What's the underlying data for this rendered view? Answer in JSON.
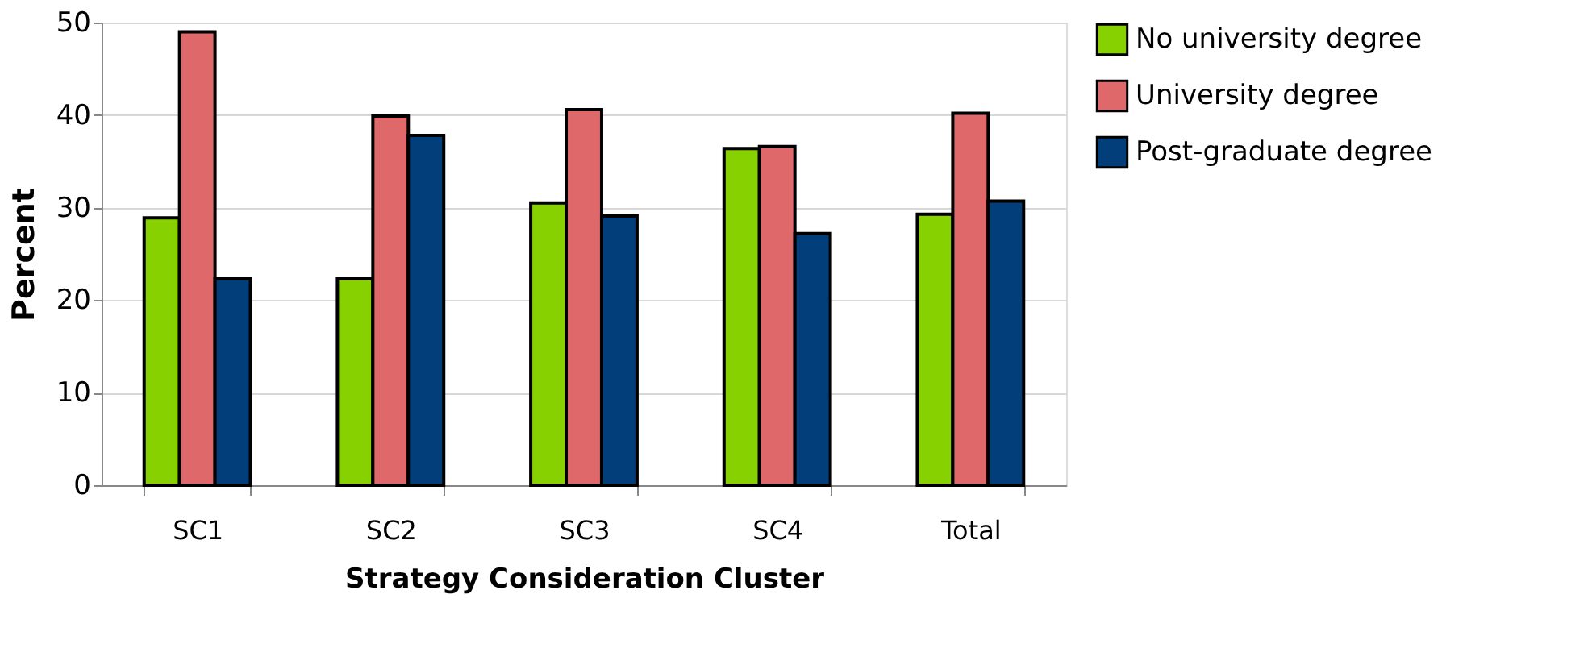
{
  "chart_data": {
    "type": "bar",
    "xlabel": "Strategy Consideration Cluster",
    "ylabel": "Percent",
    "categories": [
      "SC1",
      "SC2",
      "SC3",
      "SC4",
      "Total"
    ],
    "series": [
      {
        "name": "No university degree",
        "color": "#88d100",
        "values": [
          28.9,
          22.3,
          30.5,
          36.4,
          29.3
        ]
      },
      {
        "name": "University degree",
        "color": "#df686a",
        "values": [
          49.0,
          39.9,
          40.6,
          36.6,
          40.2
        ]
      },
      {
        "name": "Post-graduate degree",
        "color": "#023f7a",
        "values": [
          22.3,
          37.8,
          29.1,
          27.2,
          30.7
        ]
      }
    ],
    "ylim": [
      0,
      50
    ],
    "yticks": [
      0,
      10,
      20,
      30,
      40,
      50
    ],
    "grid": "y",
    "legend": "right"
  }
}
